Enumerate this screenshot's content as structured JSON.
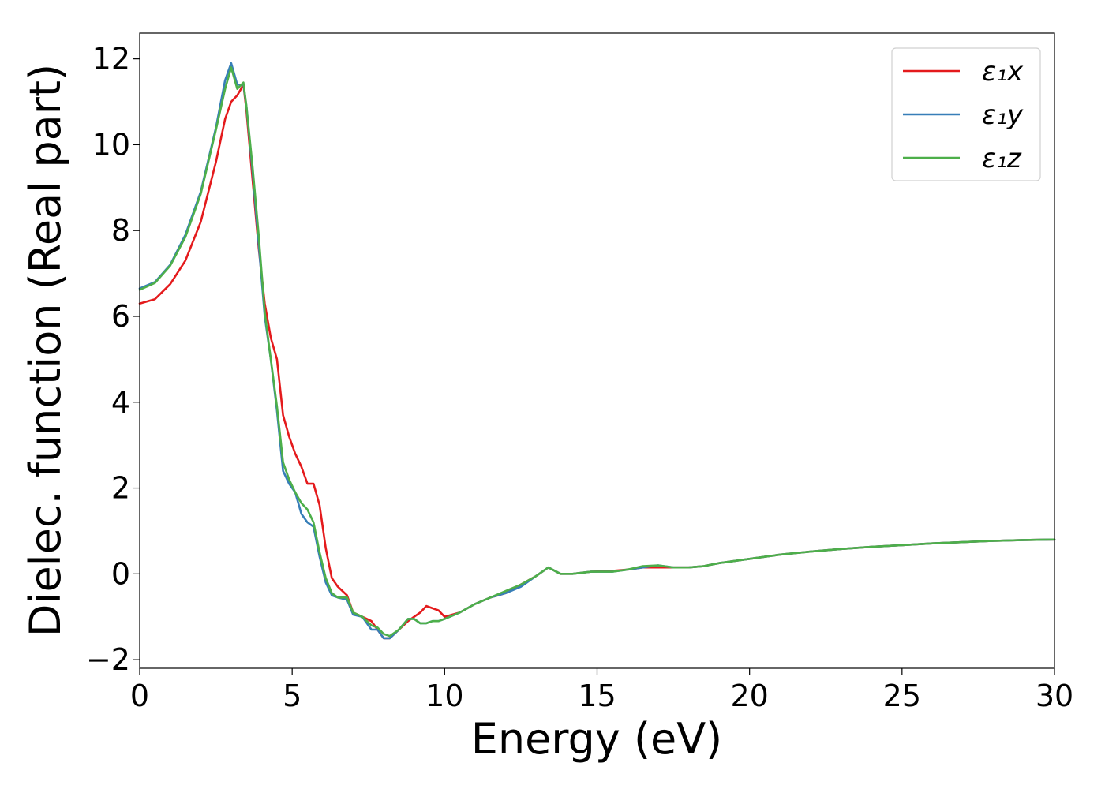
{
  "chart_data": {
    "type": "line",
    "xlabel": "Energy (eV)",
    "ylabel": "Dielec. function (Real part)",
    "xlim": [
      0,
      30
    ],
    "ylim": [
      -2.2,
      12.6
    ],
    "xticks": [
      0,
      5,
      10,
      15,
      20,
      25,
      30
    ],
    "xtick_labels": [
      "0",
      "5",
      "10",
      "15",
      "20",
      "25",
      "30"
    ],
    "yticks": [
      -2,
      0,
      2,
      4,
      6,
      8,
      10,
      12
    ],
    "ytick_labels": [
      "−2",
      "0",
      "2",
      "4",
      "6",
      "8",
      "10",
      "12"
    ],
    "grid": false,
    "legend_position": "top-right",
    "series": [
      {
        "name": "ε₁x",
        "color": "#e41a1c",
        "x": [
          0,
          0.5,
          1,
          1.5,
          2,
          2.5,
          2.8,
          3.0,
          3.2,
          3.4,
          3.5,
          3.7,
          3.9,
          4.1,
          4.3,
          4.5,
          4.7,
          4.9,
          5.1,
          5.3,
          5.5,
          5.7,
          5.9,
          6.1,
          6.3,
          6.5,
          6.8,
          7.0,
          7.3,
          7.6,
          7.8,
          8.0,
          8.2,
          8.5,
          8.8,
          9.0,
          9.2,
          9.4,
          9.6,
          9.8,
          10.0,
          10.5,
          11.0,
          11.5,
          12.0,
          12.5,
          13.0,
          13.4,
          13.8,
          14.2,
          14.8,
          15.5,
          16.0,
          16.5,
          17.0,
          17.5,
          18.0,
          18.5,
          19.0,
          20.0,
          21.0,
          22.0,
          23.0,
          24.0,
          25.0,
          26.0,
          27.0,
          28.0,
          29.0,
          30.0
        ],
        "y": [
          6.3,
          6.4,
          6.75,
          7.3,
          8.2,
          9.6,
          10.6,
          11.0,
          11.15,
          11.4,
          10.8,
          9.2,
          7.6,
          6.3,
          5.5,
          5.0,
          3.7,
          3.2,
          2.8,
          2.5,
          2.1,
          2.1,
          1.6,
          0.6,
          -0.1,
          -0.3,
          -0.5,
          -0.9,
          -1.0,
          -1.1,
          -1.3,
          -1.5,
          -1.5,
          -1.3,
          -1.1,
          -1.0,
          -0.9,
          -0.75,
          -0.8,
          -0.85,
          -1.0,
          -0.9,
          -0.7,
          -0.55,
          -0.45,
          -0.25,
          -0.05,
          0.15,
          0.0,
          0.0,
          0.05,
          0.07,
          0.1,
          0.15,
          0.15,
          0.15,
          0.15,
          0.18,
          0.25,
          0.35,
          0.45,
          0.52,
          0.58,
          0.63,
          0.67,
          0.71,
          0.74,
          0.77,
          0.79,
          0.8
        ]
      },
      {
        "name": "ε₁y",
        "color": "#377eb8",
        "x": [
          0,
          0.5,
          1,
          1.5,
          2,
          2.5,
          2.8,
          3.0,
          3.2,
          3.4,
          3.5,
          3.7,
          3.9,
          4.1,
          4.3,
          4.5,
          4.7,
          4.9,
          5.1,
          5.3,
          5.5,
          5.7,
          5.9,
          6.1,
          6.3,
          6.5,
          6.8,
          7.0,
          7.3,
          7.6,
          7.8,
          8.0,
          8.2,
          8.5,
          8.8,
          9.0,
          9.2,
          9.4,
          9.6,
          9.8,
          10.0,
          10.5,
          11.0,
          11.5,
          12.0,
          12.5,
          13.0,
          13.4,
          13.8,
          14.2,
          14.8,
          15.5,
          16.0,
          16.5,
          17.0,
          17.5,
          18.0,
          18.5,
          19.0,
          20.0,
          21.0,
          22.0,
          23.0,
          24.0,
          25.0,
          26.0,
          27.0,
          28.0,
          29.0,
          30.0
        ],
        "y": [
          6.65,
          6.8,
          7.2,
          7.9,
          8.9,
          10.4,
          11.5,
          11.9,
          11.4,
          11.4,
          10.9,
          9.4,
          7.7,
          6.0,
          5.0,
          3.8,
          2.4,
          2.1,
          1.9,
          1.4,
          1.2,
          1.1,
          0.4,
          -0.2,
          -0.5,
          -0.55,
          -0.6,
          -0.95,
          -1.0,
          -1.3,
          -1.3,
          -1.5,
          -1.5,
          -1.3,
          -1.05,
          -1.05,
          -1.15,
          -1.15,
          -1.1,
          -1.1,
          -1.05,
          -0.9,
          -0.7,
          -0.55,
          -0.45,
          -0.3,
          -0.05,
          0.15,
          0.0,
          0.0,
          0.05,
          0.05,
          0.1,
          0.15,
          0.2,
          0.15,
          0.15,
          0.18,
          0.25,
          0.35,
          0.45,
          0.52,
          0.58,
          0.63,
          0.67,
          0.71,
          0.74,
          0.77,
          0.79,
          0.8
        ]
      },
      {
        "name": "ε₁z",
        "color": "#4daf4a",
        "x": [
          0,
          0.5,
          1,
          1.5,
          2,
          2.5,
          2.8,
          3.0,
          3.2,
          3.4,
          3.5,
          3.7,
          3.9,
          4.1,
          4.3,
          4.5,
          4.7,
          4.9,
          5.1,
          5.3,
          5.5,
          5.7,
          5.9,
          6.1,
          6.3,
          6.5,
          6.8,
          7.0,
          7.3,
          7.6,
          7.8,
          8.0,
          8.2,
          8.5,
          8.8,
          9.0,
          9.2,
          9.4,
          9.6,
          9.8,
          10.0,
          10.5,
          11.0,
          11.5,
          12.0,
          12.5,
          13.0,
          13.4,
          13.8,
          14.2,
          14.8,
          15.5,
          16.0,
          16.5,
          17.0,
          17.5,
          18.0,
          18.5,
          19.0,
          20.0,
          21.0,
          22.0,
          23.0,
          24.0,
          25.0,
          26.0,
          27.0,
          28.0,
          29.0,
          30.0
        ],
        "y": [
          6.62,
          6.78,
          7.18,
          7.85,
          8.85,
          10.35,
          11.3,
          11.8,
          11.3,
          11.45,
          10.9,
          9.5,
          7.9,
          6.1,
          5.0,
          3.9,
          2.6,
          2.2,
          1.9,
          1.65,
          1.5,
          1.2,
          0.5,
          -0.1,
          -0.45,
          -0.55,
          -0.55,
          -0.9,
          -1.0,
          -1.2,
          -1.25,
          -1.4,
          -1.45,
          -1.3,
          -1.05,
          -1.05,
          -1.15,
          -1.15,
          -1.1,
          -1.1,
          -1.05,
          -0.9,
          -0.7,
          -0.55,
          -0.4,
          -0.25,
          -0.05,
          0.15,
          0.0,
          0.0,
          0.05,
          0.05,
          0.1,
          0.18,
          0.2,
          0.15,
          0.15,
          0.18,
          0.25,
          0.35,
          0.45,
          0.52,
          0.58,
          0.63,
          0.67,
          0.71,
          0.74,
          0.77,
          0.79,
          0.8
        ]
      }
    ]
  }
}
